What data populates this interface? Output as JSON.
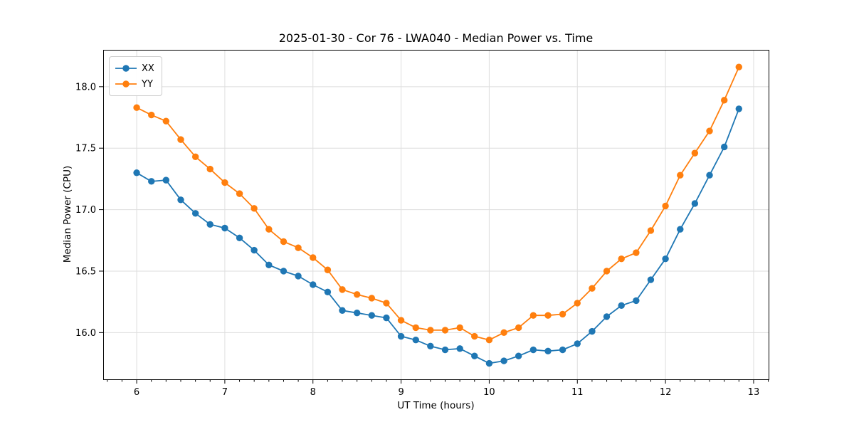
{
  "chart_data": {
    "type": "line",
    "title": "2025-01-30 - Cor 76 - LWA040 - Median Power vs. Time",
    "xlabel": "UT Time (hours)",
    "ylabel": "Median Power (CPU)",
    "xlim": [
      5.62,
      13.17
    ],
    "ylim": [
      15.62,
      18.3
    ],
    "x_ticks": {
      "values": [
        6,
        7,
        8,
        9,
        10,
        11,
        12,
        13
      ],
      "labels": [
        "6",
        "7",
        "8",
        "9",
        "10",
        "11",
        "12",
        "13"
      ]
    },
    "y_ticks": {
      "values": [
        16.0,
        16.5,
        17.0,
        17.5,
        18.0
      ],
      "labels": [
        "16.0",
        "16.5",
        "17.0",
        "17.5",
        "18.0"
      ]
    },
    "x_minor_tick_step": 0.166667,
    "grid": "major",
    "legend_position": "upper-left",
    "x": [
      6,
      6.167,
      6.333,
      6.5,
      6.667,
      6.833,
      7,
      7.167,
      7.333,
      7.5,
      7.667,
      7.833,
      8,
      8.167,
      8.333,
      8.5,
      8.667,
      8.833,
      9,
      9.167,
      9.333,
      9.5,
      9.667,
      9.833,
      10,
      10.167,
      10.333,
      10.5,
      10.667,
      10.833,
      11,
      11.167,
      11.333,
      11.5,
      11.667,
      11.833,
      12,
      12.167,
      12.333,
      12.5,
      12.667,
      12.833
    ],
    "series": [
      {
        "name": "XX",
        "color": "#1f77b4",
        "values": [
          17.3,
          17.23,
          17.24,
          17.08,
          16.97,
          16.88,
          16.85,
          16.77,
          16.67,
          16.55,
          16.5,
          16.46,
          16.39,
          16.33,
          16.18,
          16.16,
          16.14,
          16.12,
          15.97,
          15.94,
          15.89,
          15.86,
          15.87,
          15.81,
          15.75,
          15.77,
          15.81,
          15.86,
          15.85,
          15.86,
          15.91,
          16.01,
          16.13,
          16.22,
          16.26,
          16.43,
          16.6,
          16.84,
          17.05,
          17.28,
          17.51,
          17.82
        ]
      },
      {
        "name": "YY",
        "color": "#ff7f0e",
        "values": [
          17.83,
          17.77,
          17.72,
          17.57,
          17.43,
          17.33,
          17.22,
          17.13,
          17.01,
          16.84,
          16.74,
          16.69,
          16.61,
          16.51,
          16.35,
          16.31,
          16.28,
          16.24,
          16.1,
          16.04,
          16.02,
          16.02,
          16.04,
          15.97,
          15.94,
          16.0,
          16.04,
          16.14,
          16.14,
          16.15,
          16.24,
          16.36,
          16.5,
          16.6,
          16.65,
          16.83,
          17.03,
          17.28,
          17.46,
          17.64,
          17.89,
          18.16
        ]
      }
    ],
    "styles": {
      "grid_color": "#dedede",
      "spine_color": "#000000",
      "marker_radius": 4.7,
      "line_width": 1.8
    }
  }
}
